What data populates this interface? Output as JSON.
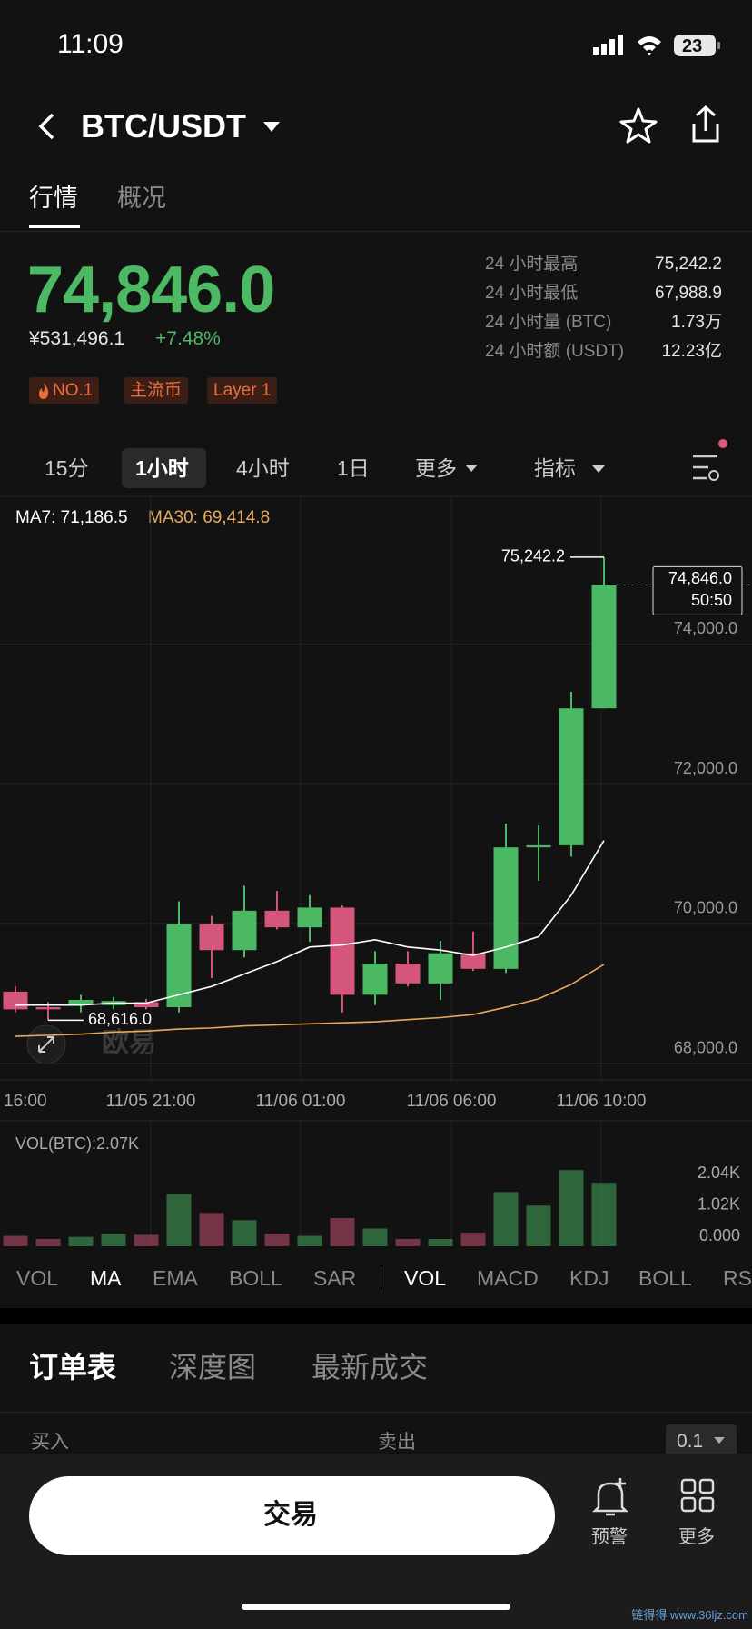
{
  "status_bar": {
    "time": "11:09",
    "battery": "23"
  },
  "header": {
    "title": "BTC/USDT"
  },
  "tabs": [
    "行情",
    "概况"
  ],
  "price": {
    "last": "74,846.0",
    "cny": "¥531,496.1",
    "change": "+7.48%"
  },
  "stats": [
    [
      "24 小时最高",
      "75,242.2"
    ],
    [
      "24 小时最低",
      "67,988.9"
    ],
    [
      "24 小时量 (BTC)",
      "1.73万"
    ],
    [
      "24 小时额 (USDT)",
      "12.23亿"
    ]
  ],
  "tags": [
    "NO.1",
    "主流币",
    "Layer 1"
  ],
  "intervals": [
    "15分",
    "1小时",
    "4小时",
    "1日",
    "更多",
    "指标"
  ],
  "chart_data": {
    "type": "candlestick",
    "up_color": "#4bb863",
    "down_color": "#d4567a",
    "open": [
      69025,
      68802,
      68832,
      68832,
      68876,
      68802,
      69990,
      69619,
      70183,
      69945,
      70228,
      68980,
      69426,
      69143,
      69574,
      69351,
      71089,
      71119,
      73079
    ],
    "high": [
      69099,
      68876,
      68980,
      68950,
      68921,
      70317,
      70109,
      70539,
      70465,
      70406,
      70257,
      69604,
      69604,
      69752,
      69886,
      71430,
      71401,
      73316,
      75242.2
    ],
    "low": [
      68728,
      68616,
      68728,
      68772,
      68772,
      68728,
      69218,
      69515,
      69916,
      69737,
      68728,
      68832,
      69099,
      68906,
      69322,
      69292,
      70614,
      70955,
      73079
    ],
    "close": [
      68772,
      68772,
      68906,
      68891,
      68802,
      69990,
      69619,
      70183,
      69945,
      70228,
      68980,
      69426,
      69143,
      69574,
      69351,
      71089,
      71119,
      73079,
      74846
    ],
    "ma": [
      {
        "name": "MA7",
        "legend": "MA7: 71,186.5",
        "color": "#ffffff",
        "values": [
          68832,
          68832,
          68832,
          68861,
          68861,
          68980,
          69099,
          69277,
          69455,
          69663,
          69693,
          69767,
          69663,
          69619,
          69544,
          69663,
          69812,
          70406,
          71186.5
        ]
      },
      {
        "name": "MA30",
        "legend": "MA30: 69,414.8",
        "color": "#e8a95c",
        "values": [
          68386,
          68401,
          68416,
          68446,
          68460,
          68490,
          68505,
          68535,
          68549,
          68564,
          68579,
          68594,
          68624,
          68653,
          68698,
          68802,
          68921,
          69129,
          69414.8
        ]
      }
    ],
    "ylim": [
      67762,
      76034
    ],
    "yticks": [
      {
        "value": 68000,
        "label": "68,000.0"
      },
      {
        "value": 70000,
        "label": "70,000.0"
      },
      {
        "value": 72000,
        "label": "72,000.0"
      },
      {
        "value": 74000,
        "label": "74,000.0"
      }
    ],
    "x_labels": [
      "16:00",
      "11/05 21:00",
      "11/06 01:00",
      "11/06 06:00",
      "11/06 10:00"
    ],
    "annotations": [
      {
        "value": 75242.2,
        "label": "75,242.2"
      },
      {
        "value": 68616,
        "label": "68,616.0"
      }
    ],
    "last_price": {
      "value": 74846,
      "label": "74,846.0",
      "countdown": "50:50"
    },
    "watermark": "欧易",
    "volume": {
      "label": "VOL(BTC):2.07K",
      "values": [
        340,
        238,
        306,
        408,
        374,
        1700,
        1088,
        850,
        408,
        340,
        918,
        578,
        238,
        238,
        442,
        1768,
        1326,
        2482,
        2070
      ],
      "ylim": [
        0,
        3910
      ],
      "yticks": [
        {
          "value": 0,
          "label": "0.000"
        },
        {
          "value": 1020,
          "label": "1.02K"
        },
        {
          "value": 2040,
          "label": "2.04K"
        }
      ]
    }
  },
  "indicators": [
    "VOL",
    "MA",
    "EMA",
    "BOLL",
    "SAR",
    "VOL",
    "MACD",
    "KDJ",
    "BOLL",
    "RS"
  ],
  "order_tabs": [
    "订单表",
    "深度图",
    "最新成交"
  ],
  "order_header": {
    "buy": "买入",
    "sell": "卖出",
    "step": "0.1"
  },
  "bottom": {
    "trade": "交易",
    "alert": "预警",
    "more": "更多"
  },
  "site_watermark": "链得得 www.36ljz.com"
}
